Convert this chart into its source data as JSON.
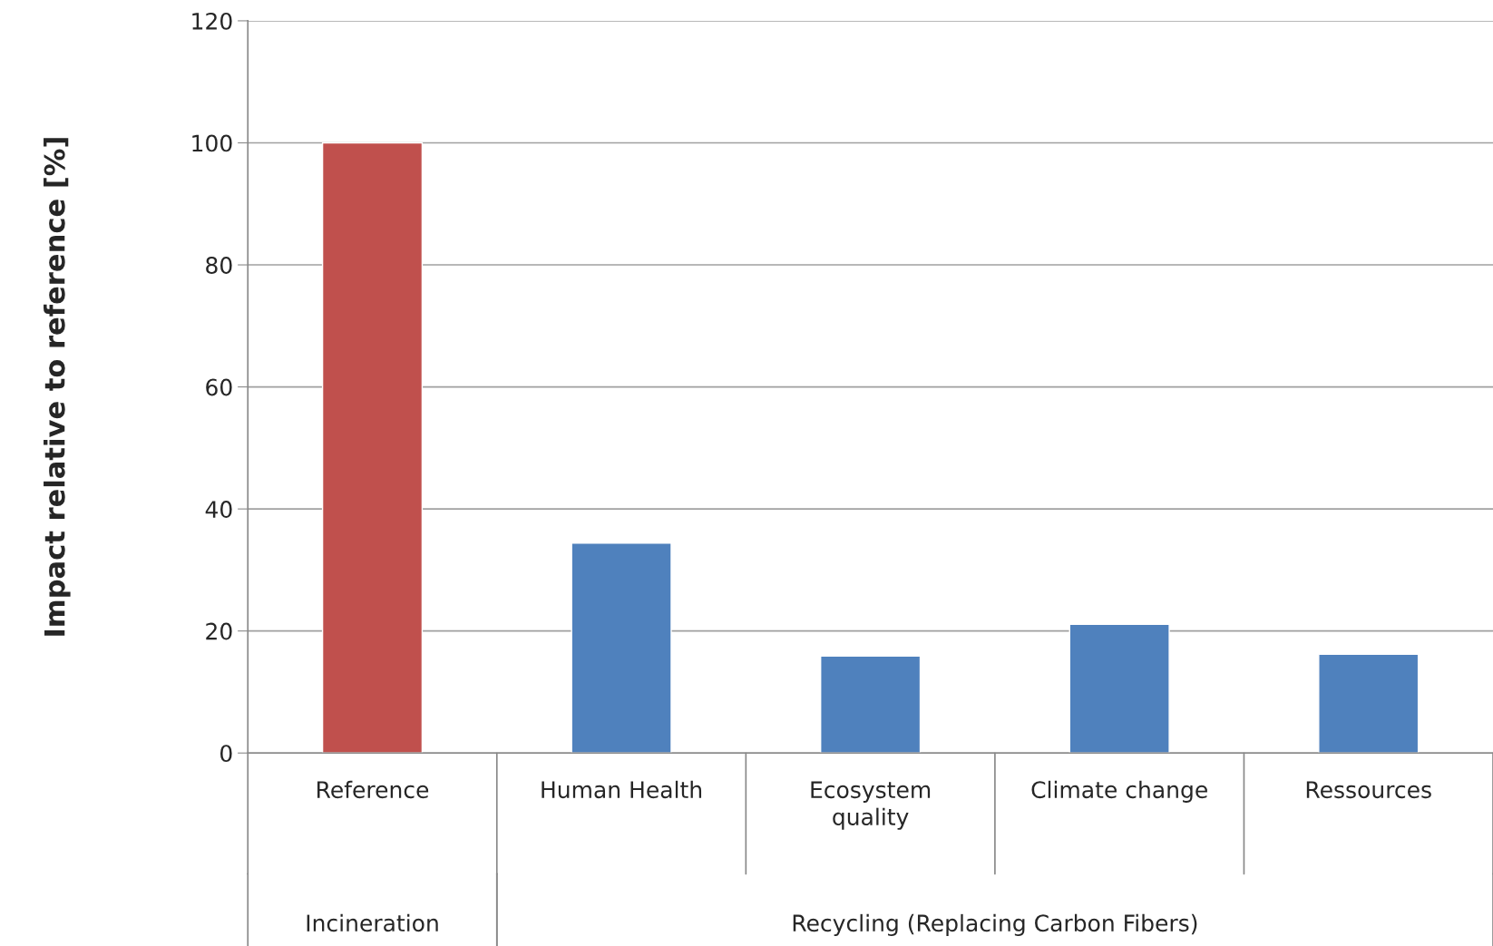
{
  "chart_data": {
    "type": "bar",
    "ylabel": "Impact relative to reference [%]",
    "categories": [
      "Reference",
      "Human Health",
      "Ecosystem\nquality",
      "Climate change",
      "Ressources"
    ],
    "values": [
      100,
      34.4,
      15.9,
      21.1,
      16.2
    ],
    "colors": [
      "#c0504d",
      "#4f81bd",
      "#4f81bd",
      "#4f81bd",
      "#4f81bd"
    ],
    "ylim": [
      0,
      120
    ],
    "yticks": [
      0,
      20,
      40,
      60,
      80,
      100,
      120
    ],
    "grid": "y",
    "annotations": [
      "Incineration",
      "Recycling (Replacing Carbon Fibers)"
    ]
  }
}
